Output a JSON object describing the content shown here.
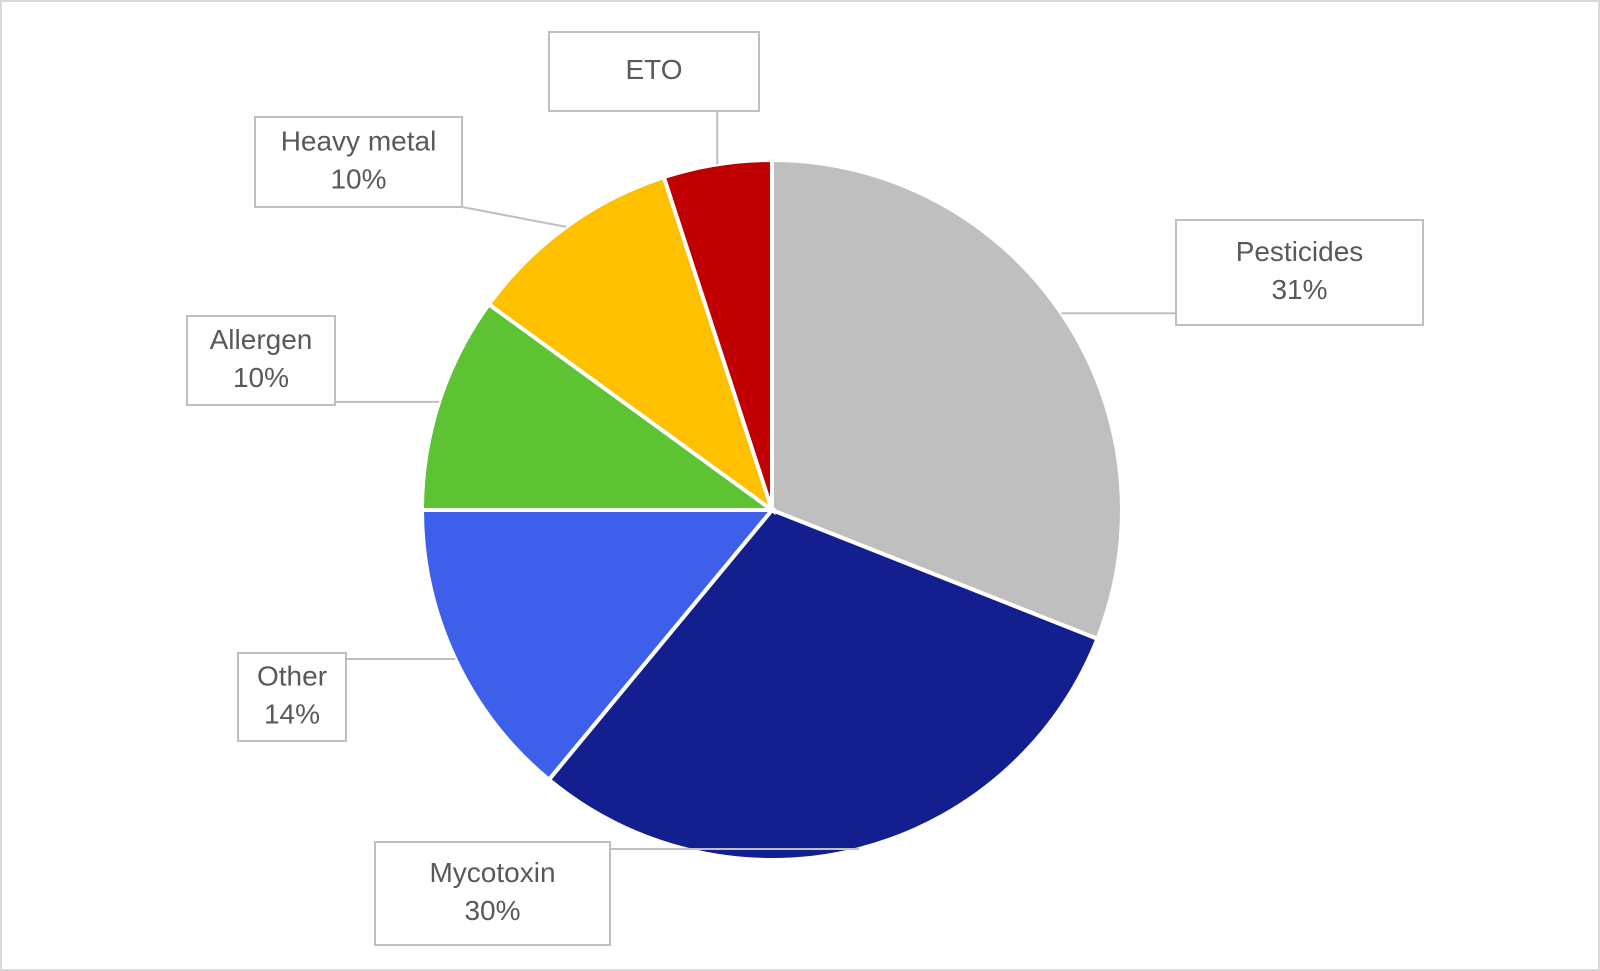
{
  "chart_data": {
    "type": "pie",
    "categories": [
      "Pesticides",
      "Mycotoxin",
      "Other",
      "Allergen",
      "Heavy metal",
      "ETO"
    ],
    "values": [
      31,
      30,
      14,
      10,
      10,
      5
    ],
    "value_labels": [
      "31%",
      "30%",
      "14%",
      "10%",
      "10%",
      null
    ],
    "colors": [
      "#bfbfbf",
      "#131f8f",
      "#3d5fe9",
      "#5ec332",
      "#ffc000",
      "#c00000"
    ]
  }
}
